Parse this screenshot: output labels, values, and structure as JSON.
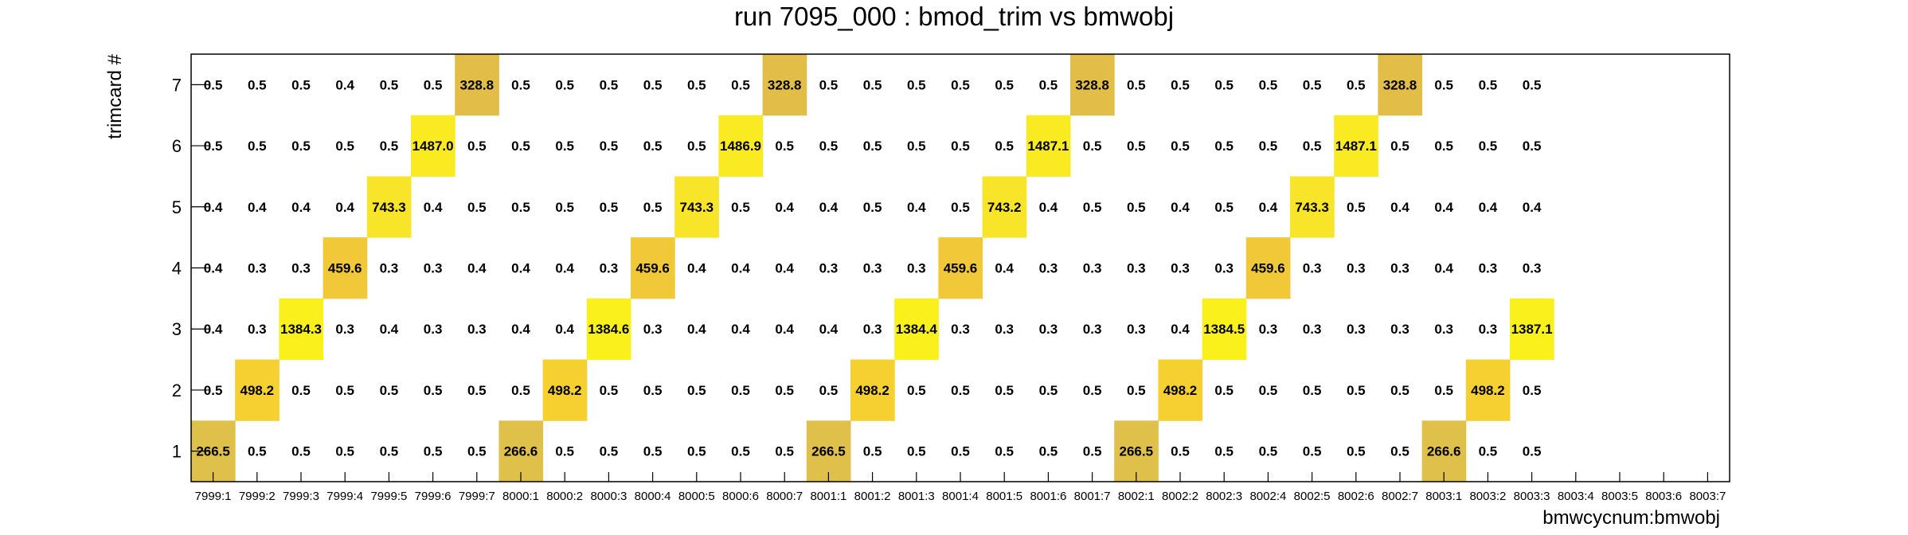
{
  "chart_data": {
    "type": "heatmap",
    "title": "run 7095_000 : bmod_trim vs bmwobj",
    "xlabel": "bmwcycnum:bmwobj",
    "ylabel": "trimcard #",
    "x_categories": [
      "7999:1",
      "7999:2",
      "7999:3",
      "7999:4",
      "7999:5",
      "7999:6",
      "7999:7",
      "8000:1",
      "8000:2",
      "8000:3",
      "8000:4",
      "8000:5",
      "8000:6",
      "8000:7",
      "8001:1",
      "8001:2",
      "8001:3",
      "8001:4",
      "8001:5",
      "8001:6",
      "8001:7",
      "8002:1",
      "8002:2",
      "8002:3",
      "8002:4",
      "8002:5",
      "8002:6",
      "8002:7",
      "8003:1",
      "8003:2",
      "8003:3",
      "8003:4",
      "8003:5",
      "8003:6",
      "8003:7"
    ],
    "y_categories": [
      "1",
      "2",
      "3",
      "4",
      "5",
      "6",
      "7"
    ],
    "grid": false,
    "colors": {
      "low": "#ffffff",
      "c266": "#dfc04a",
      "c328": "#e2be48",
      "c459": "#f0c838",
      "c498": "#f5d030",
      "c743": "#f8e428",
      "c1384": "#faf01c",
      "c1487": "#f9ea22",
      "frame": "#000000"
    },
    "rows": [
      {
        "y": "1",
        "values": [
          "266.5",
          "0.5",
          "0.5",
          "0.5",
          "0.5",
          "0.5",
          "0.5",
          "266.6",
          "0.5",
          "0.5",
          "0.5",
          "0.5",
          "0.5",
          "0.5",
          "266.5",
          "0.5",
          "0.5",
          "0.5",
          "0.5",
          "0.5",
          "0.5",
          "266.5",
          "0.5",
          "0.5",
          "0.5",
          "0.5",
          "0.5",
          "0.5",
          "266.6",
          "0.5",
          "0.5",
          "",
          "",
          "",
          ""
        ]
      },
      {
        "y": "2",
        "values": [
          "0.5",
          "498.2",
          "0.5",
          "0.5",
          "0.5",
          "0.5",
          "0.5",
          "0.5",
          "498.2",
          "0.5",
          "0.5",
          "0.5",
          "0.5",
          "0.5",
          "0.5",
          "498.2",
          "0.5",
          "0.5",
          "0.5",
          "0.5",
          "0.5",
          "0.5",
          "498.2",
          "0.5",
          "0.5",
          "0.5",
          "0.5",
          "0.5",
          "0.5",
          "498.2",
          "0.5",
          "",
          "",
          "",
          ""
        ]
      },
      {
        "y": "3",
        "values": [
          "0.4",
          "0.3",
          "1384.3",
          "0.3",
          "0.4",
          "0.3",
          "0.3",
          "0.4",
          "0.4",
          "1384.6",
          "0.3",
          "0.4",
          "0.4",
          "0.4",
          "0.4",
          "0.3",
          "1384.4",
          "0.3",
          "0.3",
          "0.3",
          "0.3",
          "0.3",
          "0.4",
          "1384.5",
          "0.3",
          "0.3",
          "0.3",
          "0.3",
          "0.3",
          "0.3",
          "1387.1",
          "",
          "",
          "",
          ""
        ]
      },
      {
        "y": "4",
        "values": [
          "0.4",
          "0.3",
          "0.3",
          "459.6",
          "0.3",
          "0.3",
          "0.4",
          "0.4",
          "0.4",
          "0.3",
          "459.6",
          "0.4",
          "0.4",
          "0.4",
          "0.3",
          "0.3",
          "0.3",
          "459.6",
          "0.4",
          "0.3",
          "0.3",
          "0.3",
          "0.3",
          "0.3",
          "459.6",
          "0.3",
          "0.3",
          "0.3",
          "0.4",
          "0.3",
          "0.3",
          "",
          "",
          "",
          ""
        ]
      },
      {
        "y": "5",
        "values": [
          "0.4",
          "0.4",
          "0.4",
          "0.4",
          "743.3",
          "0.4",
          "0.5",
          "0.5",
          "0.5",
          "0.5",
          "0.5",
          "743.3",
          "0.5",
          "0.4",
          "0.4",
          "0.5",
          "0.4",
          "0.5",
          "743.2",
          "0.4",
          "0.5",
          "0.5",
          "0.4",
          "0.5",
          "0.4",
          "743.3",
          "0.5",
          "0.4",
          "0.4",
          "0.4",
          "0.4",
          "",
          "",
          "",
          ""
        ]
      },
      {
        "y": "6",
        "values": [
          "0.5",
          "0.5",
          "0.5",
          "0.5",
          "0.5",
          "1487.0",
          "0.5",
          "0.5",
          "0.5",
          "0.5",
          "0.5",
          "0.5",
          "1486.9",
          "0.5",
          "0.5",
          "0.5",
          "0.5",
          "0.5",
          "0.5",
          "1487.1",
          "0.5",
          "0.5",
          "0.5",
          "0.5",
          "0.5",
          "0.5",
          "1487.1",
          "0.5",
          "0.5",
          "0.5",
          "0.5",
          "",
          "",
          "",
          ""
        ]
      },
      {
        "y": "7",
        "values": [
          "0.5",
          "0.5",
          "0.5",
          "0.4",
          "0.5",
          "0.5",
          "328.8",
          "0.5",
          "0.5",
          "0.5",
          "0.5",
          "0.5",
          "0.5",
          "328.8",
          "0.5",
          "0.5",
          "0.5",
          "0.5",
          "0.5",
          "0.5",
          "328.8",
          "0.5",
          "0.5",
          "0.5",
          "0.5",
          "0.5",
          "0.5",
          "328.8",
          "0.5",
          "0.5",
          "0.5",
          "",
          "",
          "",
          ""
        ]
      }
    ]
  }
}
